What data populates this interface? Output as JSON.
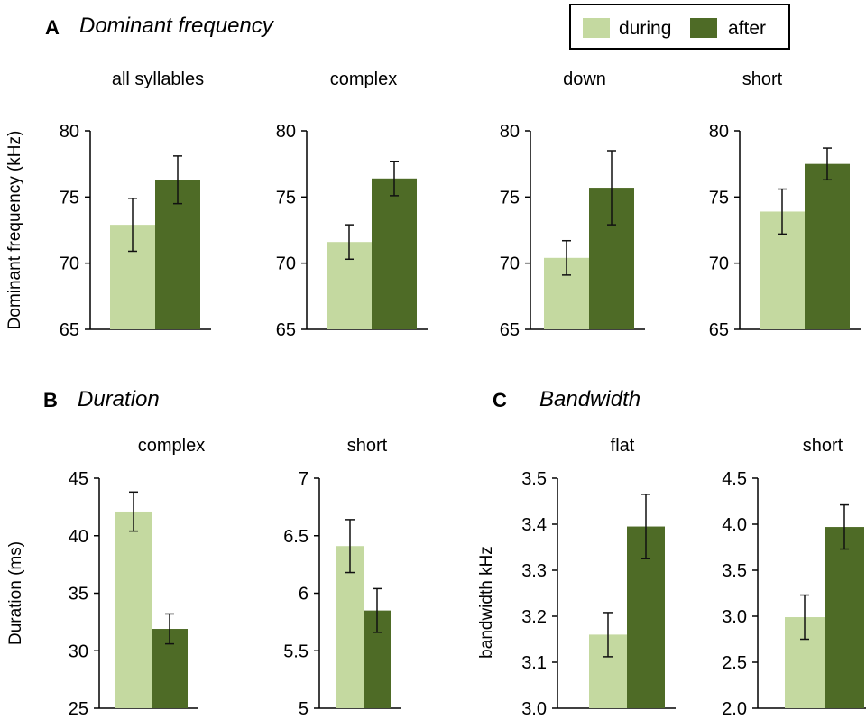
{
  "colors": {
    "during": "#c4d9a0",
    "after": "#4e6b26"
  },
  "legend": {
    "during": "during",
    "after": "after"
  },
  "sections": {
    "A": {
      "letter": "A",
      "title": "Dominant frequency"
    },
    "B": {
      "letter": "B",
      "title": "Duration"
    },
    "C": {
      "letter": "C",
      "title": "Bandwidth"
    }
  },
  "chart_data": [
    {
      "type": "bar",
      "section": "A",
      "title": "all syllables",
      "ylabel": "Dominant frequency (kHz)",
      "ylim": [
        65,
        80
      ],
      "yticks": [
        "65",
        "70",
        "75",
        "80"
      ],
      "tick_values": [
        65,
        70,
        75,
        80
      ],
      "series": [
        {
          "name": "during",
          "values": [
            72.9
          ],
          "error": [
            2.0
          ]
        },
        {
          "name": "after",
          "values": [
            76.3
          ],
          "error": [
            1.8
          ]
        }
      ]
    },
    {
      "type": "bar",
      "section": "A",
      "title": "complex",
      "ylabel": "",
      "ylim": [
        65,
        80
      ],
      "yticks": [
        "65",
        "70",
        "75",
        "80"
      ],
      "tick_values": [
        65,
        70,
        75,
        80
      ],
      "series": [
        {
          "name": "during",
          "values": [
            71.6
          ],
          "error": [
            1.3
          ]
        },
        {
          "name": "after",
          "values": [
            76.4
          ],
          "error": [
            1.3
          ]
        }
      ]
    },
    {
      "type": "bar",
      "section": "A",
      "title": "down",
      "ylabel": "",
      "ylim": [
        65,
        80
      ],
      "yticks": [
        "65",
        "70",
        "75",
        "80"
      ],
      "tick_values": [
        65,
        70,
        75,
        80
      ],
      "series": [
        {
          "name": "during",
          "values": [
            70.4
          ],
          "error": [
            1.3
          ]
        },
        {
          "name": "after",
          "values": [
            75.7
          ],
          "error": [
            2.8
          ]
        }
      ]
    },
    {
      "type": "bar",
      "section": "A",
      "title": "short",
      "ylabel": "",
      "ylim": [
        65,
        80
      ],
      "yticks": [
        "65",
        "70",
        "75",
        "80"
      ],
      "tick_values": [
        65,
        70,
        75,
        80
      ],
      "series": [
        {
          "name": "during",
          "values": [
            73.9
          ],
          "error": [
            1.7
          ]
        },
        {
          "name": "after",
          "values": [
            77.5
          ],
          "error": [
            1.2
          ]
        }
      ]
    },
    {
      "type": "bar",
      "section": "B",
      "title": "complex",
      "ylabel": "Duration (ms)",
      "ylim": [
        25,
        45
      ],
      "yticks": [
        "25",
        "30",
        "35",
        "40",
        "45"
      ],
      "tick_values": [
        25,
        30,
        35,
        40,
        45
      ],
      "series": [
        {
          "name": "during",
          "values": [
            42.1
          ],
          "error": [
            1.7
          ]
        },
        {
          "name": "after",
          "values": [
            31.9
          ],
          "error": [
            1.3
          ]
        }
      ]
    },
    {
      "type": "bar",
      "section": "B",
      "title": "short",
      "ylabel": "",
      "ylim": [
        5,
        7
      ],
      "yticks": [
        "5",
        "5.5",
        "6",
        "6.5",
        "7"
      ],
      "tick_values": [
        5,
        5.5,
        6,
        6.5,
        7
      ],
      "series": [
        {
          "name": "during",
          "values": [
            6.41
          ],
          "error": [
            0.23
          ]
        },
        {
          "name": "after",
          "values": [
            5.85
          ],
          "error": [
            0.19
          ]
        }
      ]
    },
    {
      "type": "bar",
      "section": "C",
      "title": "flat",
      "ylabel": "bandwidth kHz",
      "ylim": [
        3.0,
        3.5
      ],
      "yticks": [
        "3.0",
        "3.1",
        "3.2",
        "3.3",
        "3.4",
        "3.5"
      ],
      "tick_values": [
        3.0,
        3.1,
        3.2,
        3.3,
        3.4,
        3.5
      ],
      "series": [
        {
          "name": "during",
          "values": [
            3.16
          ],
          "error": [
            0.048
          ]
        },
        {
          "name": "after",
          "values": [
            3.395
          ],
          "error": [
            0.07
          ]
        }
      ]
    },
    {
      "type": "bar",
      "section": "C",
      "title": "short",
      "ylabel": "",
      "ylim": [
        2.0,
        4.5
      ],
      "yticks": [
        "2.0",
        "2.5",
        "3.0",
        "3.5",
        "4.0",
        "4.5"
      ],
      "tick_values": [
        2.0,
        2.5,
        3.0,
        3.5,
        4.0,
        4.5
      ],
      "series": [
        {
          "name": "during",
          "values": [
            2.99
          ],
          "error": [
            0.24
          ]
        },
        {
          "name": "after",
          "values": [
            3.97
          ],
          "error": [
            0.24
          ]
        }
      ]
    }
  ]
}
